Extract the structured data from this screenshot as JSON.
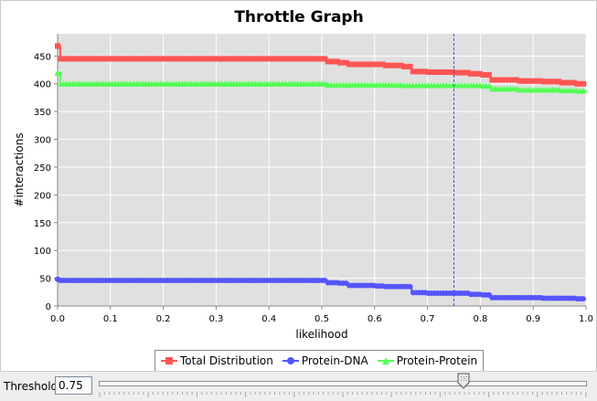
{
  "window": {
    "title": "Throttle Graph"
  },
  "threshold": {
    "label": "Threshold",
    "value": "0.75"
  },
  "colors": {
    "plot_background": "#e0e0e0",
    "grid": "#ffffff",
    "threshold_line": "#4a4af0",
    "total": "#ff5555",
    "protein_dna": "#5555ff",
    "protein_protein": "#55ff55"
  },
  "chart_data": {
    "type": "line",
    "title": "Throttle Graph",
    "xlabel": "likelihood",
    "ylabel": "#interactions",
    "xlim": [
      0,
      1
    ],
    "ylim": [
      0,
      490
    ],
    "xticks": [
      "0.0",
      "0.1",
      "0.2",
      "0.3",
      "0.4",
      "0.5",
      "0.6",
      "0.7",
      "0.8",
      "0.9",
      "1.0"
    ],
    "yticks": [
      "0",
      "50",
      "100",
      "150",
      "200",
      "250",
      "300",
      "350",
      "400",
      "450"
    ],
    "threshold_x": 0.75,
    "grid": true,
    "legend_position": "bottom",
    "series": [
      {
        "name": "Total Distribution",
        "color": "#ff5555",
        "marker": "square",
        "points": [
          [
            0,
            468
          ],
          [
            0.005,
            445
          ],
          [
            0.1,
            445
          ],
          [
            0.2,
            445
          ],
          [
            0.3,
            445
          ],
          [
            0.4,
            445
          ],
          [
            0.5,
            445
          ],
          [
            0.51,
            440
          ],
          [
            0.53,
            438
          ],
          [
            0.55,
            435
          ],
          [
            0.6,
            435
          ],
          [
            0.62,
            433
          ],
          [
            0.65,
            431
          ],
          [
            0.67,
            422
          ],
          [
            0.7,
            421
          ],
          [
            0.75,
            420
          ],
          [
            0.78,
            418
          ],
          [
            0.8,
            416
          ],
          [
            0.82,
            407
          ],
          [
            0.85,
            407
          ],
          [
            0.87,
            405
          ],
          [
            0.9,
            405
          ],
          [
            0.92,
            404
          ],
          [
            0.95,
            402
          ],
          [
            0.98,
            400
          ],
          [
            1.0,
            399
          ]
        ]
      },
      {
        "name": "Protein-DNA",
        "color": "#5555ff",
        "marker": "circle",
        "points": [
          [
            0,
            48
          ],
          [
            0.005,
            46
          ],
          [
            0.1,
            46
          ],
          [
            0.2,
            46
          ],
          [
            0.3,
            46
          ],
          [
            0.4,
            46
          ],
          [
            0.5,
            46
          ],
          [
            0.51,
            42
          ],
          [
            0.53,
            41
          ],
          [
            0.55,
            37
          ],
          [
            0.6,
            36
          ],
          [
            0.62,
            35
          ],
          [
            0.65,
            35
          ],
          [
            0.67,
            24
          ],
          [
            0.7,
            23
          ],
          [
            0.75,
            23
          ],
          [
            0.78,
            21
          ],
          [
            0.8,
            20
          ],
          [
            0.82,
            15
          ],
          [
            0.85,
            15
          ],
          [
            0.87,
            15
          ],
          [
            0.9,
            15
          ],
          [
            0.92,
            14
          ],
          [
            0.95,
            14
          ],
          [
            0.98,
            13
          ],
          [
            1.0,
            13
          ]
        ]
      },
      {
        "name": "Protein-Protein",
        "color": "#55ff55",
        "marker": "triangle",
        "points": [
          [
            0,
            420
          ],
          [
            0.005,
            400
          ],
          [
            0.1,
            400
          ],
          [
            0.2,
            400
          ],
          [
            0.3,
            400
          ],
          [
            0.4,
            400
          ],
          [
            0.5,
            400
          ],
          [
            0.51,
            398
          ],
          [
            0.53,
            398
          ],
          [
            0.55,
            398
          ],
          [
            0.6,
            398
          ],
          [
            0.62,
            398
          ],
          [
            0.65,
            397
          ],
          [
            0.67,
            397
          ],
          [
            0.7,
            397
          ],
          [
            0.75,
            397
          ],
          [
            0.78,
            397
          ],
          [
            0.8,
            396
          ],
          [
            0.82,
            391
          ],
          [
            0.85,
            391
          ],
          [
            0.87,
            389
          ],
          [
            0.9,
            389
          ],
          [
            0.92,
            389
          ],
          [
            0.95,
            388
          ],
          [
            0.98,
            387
          ],
          [
            1.0,
            385
          ]
        ]
      }
    ]
  }
}
